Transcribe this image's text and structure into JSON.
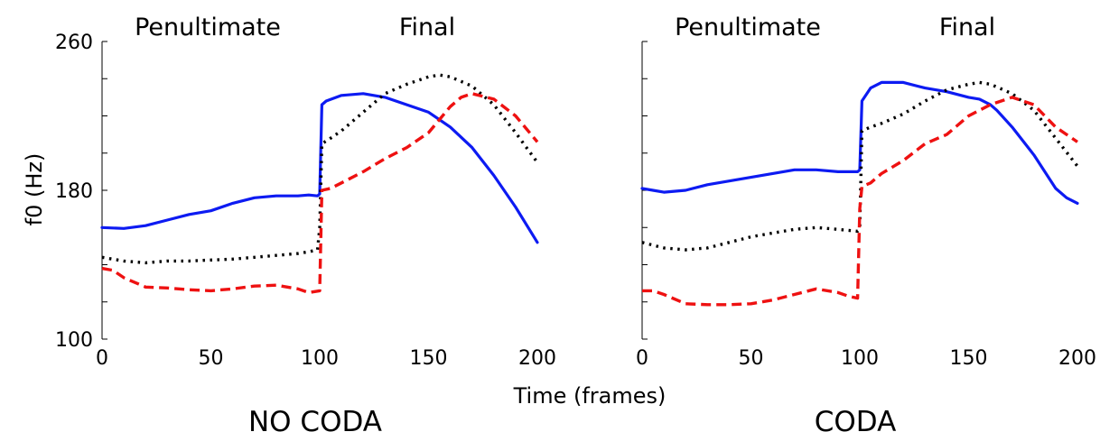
{
  "figure": {
    "ylabel": "f0 (Hz)",
    "xlabel": "Time (frames)"
  },
  "colors": {
    "blue_series": "#0d1bf2",
    "black_series": "#000000",
    "red_series": "#ee1111"
  },
  "chart_data": [
    {
      "type": "line",
      "title": "NO CODA",
      "section_labels": [
        "Penultimate",
        "Final"
      ],
      "xlabel": "Time (frames)",
      "ylabel": "f0 (Hz)",
      "xlim": [
        0,
        200
      ],
      "ylim": [
        100,
        260
      ],
      "xticks": [
        0,
        50,
        100,
        150,
        200
      ],
      "yticks": [
        100,
        180,
        260
      ],
      "grid": false,
      "series": [
        {
          "style": "solid",
          "color": "#0d1bf2",
          "x": [
            0,
            10,
            20,
            30,
            40,
            50,
            60,
            70,
            80,
            90,
            95,
            99,
            100,
            101,
            103,
            110,
            120,
            130,
            140,
            150,
            160,
            170,
            180,
            190,
            200
          ],
          "y": [
            160,
            159.5,
            161,
            164,
            167,
            169,
            173,
            176,
            177,
            177,
            177.5,
            177,
            178,
            226,
            228,
            231,
            232,
            230,
            226,
            222,
            214,
            203,
            188,
            171,
            152
          ]
        },
        {
          "style": "dotted",
          "color": "#000000",
          "x": [
            0,
            10,
            20,
            30,
            40,
            50,
            60,
            70,
            80,
            90,
            95,
            99,
            100,
            101,
            105,
            110,
            120,
            130,
            140,
            150,
            155,
            160,
            170,
            180,
            190,
            200
          ],
          "y": [
            144,
            142,
            141,
            142,
            142,
            142.5,
            143,
            144,
            145,
            146,
            147,
            148,
            160,
            205,
            208,
            212,
            222,
            232,
            237,
            241,
            242,
            241,
            236,
            226,
            211,
            195
          ]
        },
        {
          "style": "dashed",
          "color": "#ee1111",
          "x": [
            0,
            5,
            10,
            20,
            30,
            40,
            50,
            60,
            70,
            80,
            90,
            95,
            100,
            101,
            105,
            110,
            120,
            130,
            140,
            150,
            160,
            165,
            170,
            180,
            190,
            200
          ],
          "y": [
            138,
            137,
            133,
            128,
            127.5,
            126.5,
            126,
            127,
            128.5,
            129,
            127,
            125,
            126,
            180,
            181,
            184,
            190,
            197,
            203,
            211,
            225,
            230,
            232,
            229,
            220,
            206
          ]
        }
      ]
    },
    {
      "type": "line",
      "title": "CODA",
      "section_labels": [
        "Penultimate",
        "Final"
      ],
      "xlabel": "Time (frames)",
      "ylabel": "",
      "xlim": [
        0,
        200
      ],
      "ylim": [
        100,
        260
      ],
      "xticks": [
        0,
        50,
        100,
        150,
        200
      ],
      "yticks": [],
      "grid": false,
      "series": [
        {
          "style": "solid",
          "color": "#0d1bf2",
          "x": [
            0,
            5,
            10,
            20,
            30,
            40,
            50,
            60,
            70,
            80,
            90,
            99,
            100,
            101,
            105,
            110,
            120,
            130,
            140,
            150,
            155,
            160,
            163,
            170,
            180,
            190,
            195,
            200
          ],
          "y": [
            181,
            180,
            179,
            180,
            183,
            185,
            187,
            189,
            191,
            191,
            190,
            190,
            191,
            228,
            235,
            238,
            238,
            235,
            233,
            230,
            229,
            226,
            223,
            214,
            199,
            181,
            176,
            173
          ]
        },
        {
          "style": "dotted",
          "color": "#000000",
          "x": [
            0,
            10,
            20,
            30,
            40,
            50,
            60,
            70,
            80,
            90,
            99,
            100,
            101,
            105,
            110,
            120,
            130,
            140,
            150,
            155,
            160,
            170,
            180,
            190,
            200
          ],
          "y": [
            152,
            149,
            148,
            149,
            152,
            155,
            157,
            159,
            160,
            159,
            158,
            160,
            212,
            214,
            216,
            221,
            228,
            234,
            237,
            238,
            237,
            232,
            223,
            208,
            193
          ]
        },
        {
          "style": "dashed",
          "color": "#ee1111",
          "x": [
            0,
            5,
            10,
            20,
            30,
            40,
            50,
            60,
            70,
            80,
            90,
            95,
            99,
            100,
            101,
            105,
            110,
            120,
            130,
            140,
            150,
            160,
            170,
            180,
            190,
            200
          ],
          "y": [
            126,
            126,
            124,
            119,
            118.5,
            118.5,
            119,
            121,
            124,
            127,
            125,
            123,
            122,
            170,
            182,
            184,
            189,
            196,
            205,
            210,
            220,
            226,
            230,
            226,
            214,
            206
          ]
        }
      ]
    }
  ]
}
